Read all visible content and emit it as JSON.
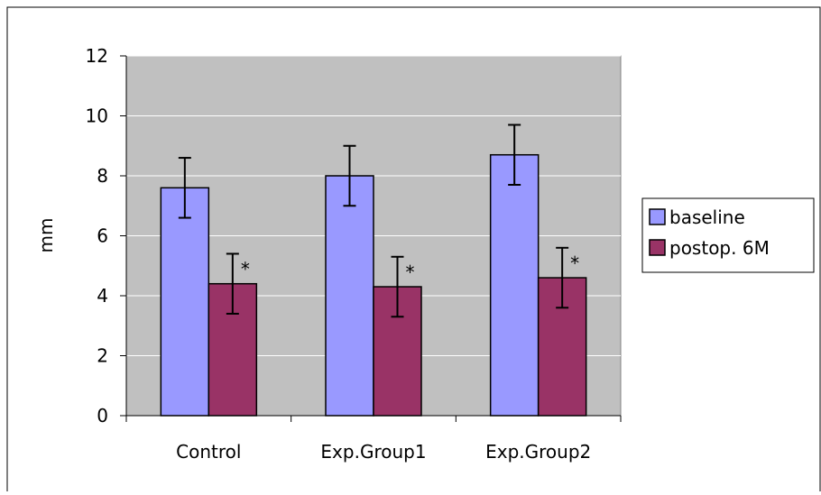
{
  "chart_data": {
    "type": "bar",
    "title": "",
    "xlabel": "",
    "ylabel": "mm",
    "ylim": [
      0,
      12
    ],
    "yticks": [
      "0",
      "2",
      "4",
      "6",
      "8",
      "10",
      "12"
    ],
    "categories": [
      "Control",
      "Exp.Group1",
      "Exp.Group2"
    ],
    "series": [
      {
        "name": "baseline",
        "color": "#9999ff",
        "values": [
          7.6,
          8.0,
          8.7
        ],
        "errors": [
          1.0,
          1.0,
          1.0
        ],
        "annotations": [
          "",
          "",
          ""
        ]
      },
      {
        "name": "postop. 6M",
        "color": "#993366",
        "values": [
          4.4,
          4.3,
          4.6
        ],
        "errors": [
          1.0,
          1.0,
          1.0
        ],
        "annotations": [
          "*",
          "*",
          "*"
        ]
      }
    ],
    "grid": true,
    "plot_background": "#c0c0c0",
    "legend": "right"
  }
}
